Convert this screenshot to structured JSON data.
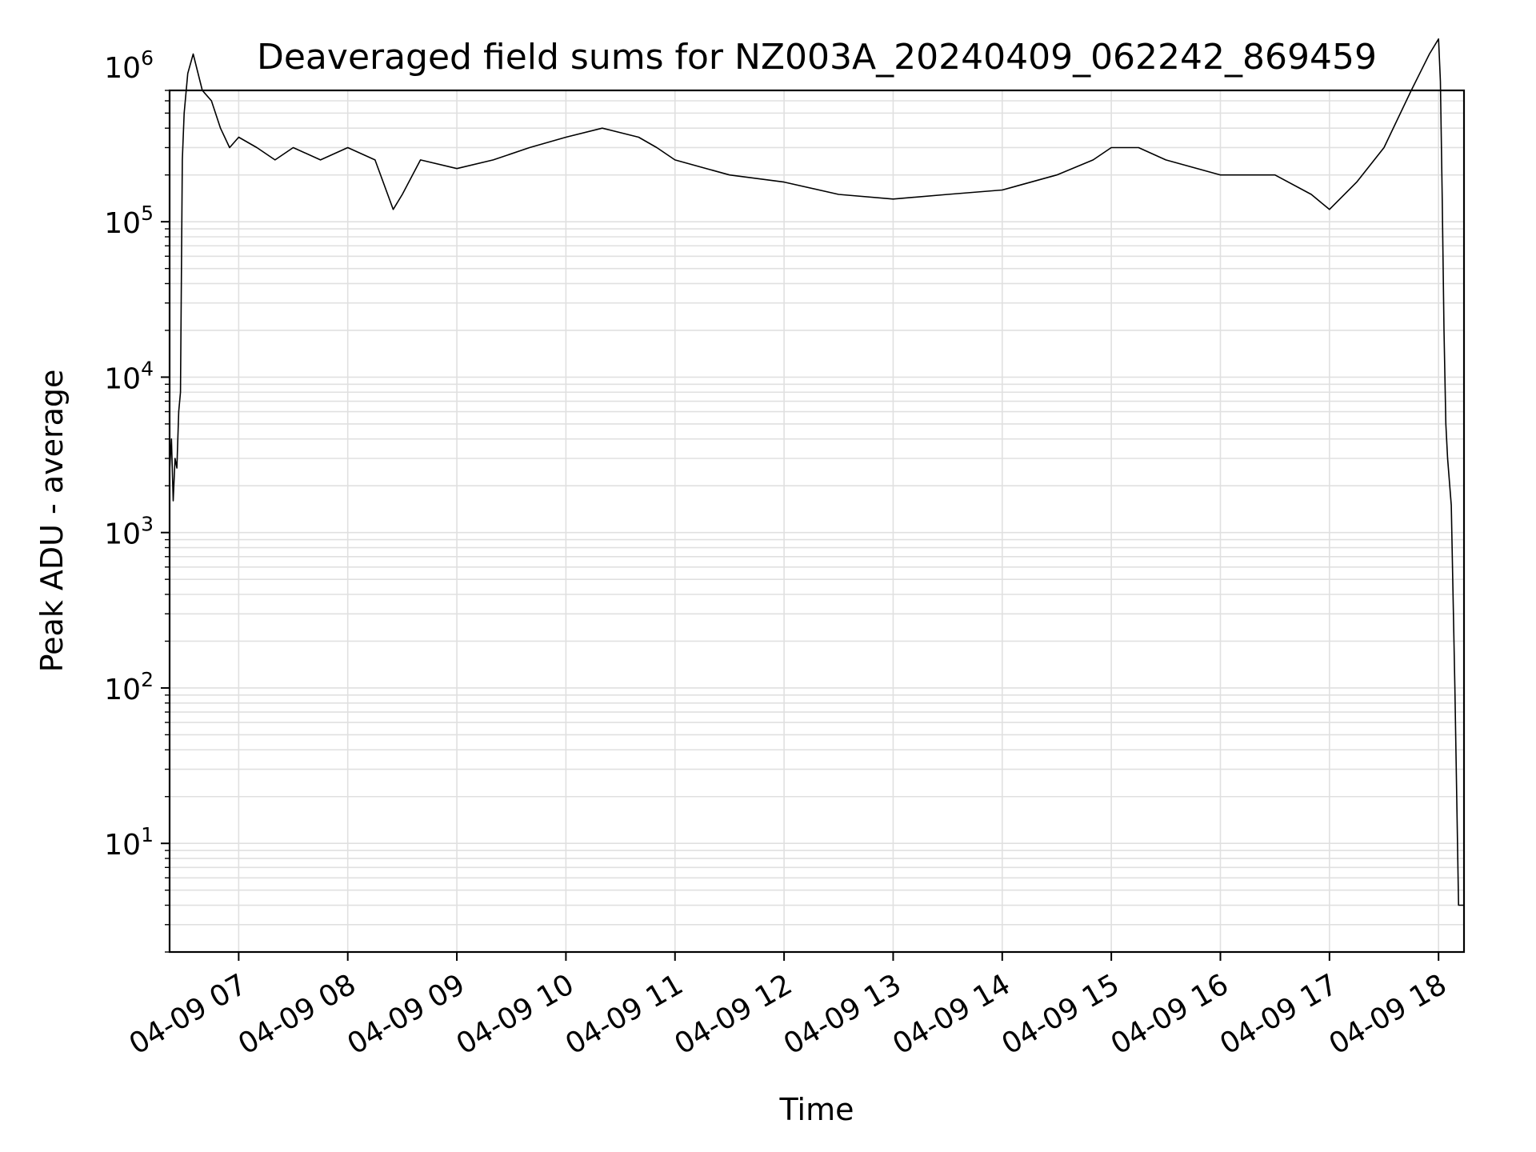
{
  "chart_data": {
    "type": "line",
    "title": "Deaveraged field sums for NZ003A_20240409_062242_869459",
    "xlabel": "Time",
    "ylabel": "Peak ADU - average",
    "yscale": "log",
    "ylim": [
      2,
      700000
    ],
    "xlim": [
      "04-09 06:22",
      "04-09 18:14"
    ],
    "grid": true,
    "grid_which": "both",
    "line_color": "#000000",
    "grid_color": "#e0e0e0",
    "x_ticks": [
      {
        "label": "04-09 07",
        "time": "04-09 07:00"
      },
      {
        "label": "04-09 08",
        "time": "04-09 08:00"
      },
      {
        "label": "04-09 09",
        "time": "04-09 09:00"
      },
      {
        "label": "04-09 10",
        "time": "04-09 10:00"
      },
      {
        "label": "04-09 11",
        "time": "04-09 11:00"
      },
      {
        "label": "04-09 12",
        "time": "04-09 12:00"
      },
      {
        "label": "04-09 13",
        "time": "04-09 13:00"
      },
      {
        "label": "04-09 14",
        "time": "04-09 14:00"
      },
      {
        "label": "04-09 15",
        "time": "04-09 15:00"
      },
      {
        "label": "04-09 16",
        "time": "04-09 16:00"
      },
      {
        "label": "04-09 17",
        "time": "04-09 17:00"
      },
      {
        "label": "04-09 18",
        "time": "04-09 18:00"
      }
    ],
    "y_ticks": [
      {
        "base": "10",
        "exp": "1",
        "value": 10
      },
      {
        "base": "10",
        "exp": "2",
        "value": 100
      },
      {
        "base": "10",
        "exp": "3",
        "value": 1000
      },
      {
        "base": "10",
        "exp": "4",
        "value": 10000
      },
      {
        "base": "10",
        "exp": "5",
        "value": 100000
      },
      {
        "base": "10",
        "exp": "6",
        "value": 1000000
      }
    ],
    "series": [
      {
        "x": [
          "04-09 06:22",
          "04-09 06:23",
          "04-09 06:24",
          "04-09 06:25",
          "04-09 06:26",
          "04-09 06:27",
          "04-09 06:28",
          "04-09 06:29",
          "04-09 06:30",
          "04-09 06:32",
          "04-09 06:35",
          "04-09 06:40",
          "04-09 06:45",
          "04-09 06:50",
          "04-09 06:55",
          "04-09 07:00",
          "04-09 07:10",
          "04-09 07:20",
          "04-09 07:30",
          "04-09 07:45",
          "04-09 08:00",
          "04-09 08:15",
          "04-09 08:25",
          "04-09 08:30",
          "04-09 08:40",
          "04-09 09:00",
          "04-09 09:20",
          "04-09 09:40",
          "04-09 10:00",
          "04-09 10:20",
          "04-09 10:40",
          "04-09 10:50",
          "04-09 11:00",
          "04-09 11:30",
          "04-09 12:00",
          "04-09 12:30",
          "04-09 13:00",
          "04-09 13:30",
          "04-09 14:00",
          "04-09 14:30",
          "04-09 14:50",
          "04-09 15:00",
          "04-09 15:15",
          "04-09 15:30",
          "04-09 16:00",
          "04-09 16:30",
          "04-09 16:50",
          "04-09 17:00",
          "04-09 17:15",
          "04-09 17:30",
          "04-09 17:45",
          "04-09 17:55",
          "04-09 18:00",
          "04-09 18:01",
          "04-09 18:02",
          "04-09 18:03",
          "04-09 18:04",
          "04-09 18:05",
          "04-09 18:07",
          "04-09 18:09",
          "04-09 18:10",
          "04-09 18:11",
          "04-09 18:13",
          "04-09 18:14"
        ],
        "y": [
          2500,
          4000,
          1600,
          3000,
          2600,
          6000,
          8000,
          250000,
          500000,
          900000,
          1200000,
          700000,
          600000,
          400000,
          300000,
          350000,
          300000,
          250000,
          300000,
          250000,
          300000,
          250000,
          120000,
          150000,
          250000,
          220000,
          250000,
          300000,
          350000,
          400000,
          350000,
          300000,
          250000,
          200000,
          180000,
          150000,
          140000,
          150000,
          160000,
          200000,
          250000,
          300000,
          300000,
          250000,
          200000,
          200000,
          150000,
          120000,
          180000,
          300000,
          700000,
          1200000,
          1500000,
          800000,
          150000,
          20000,
          5000,
          3000,
          1500,
          100,
          20,
          4,
          4,
          4
        ]
      }
    ]
  }
}
